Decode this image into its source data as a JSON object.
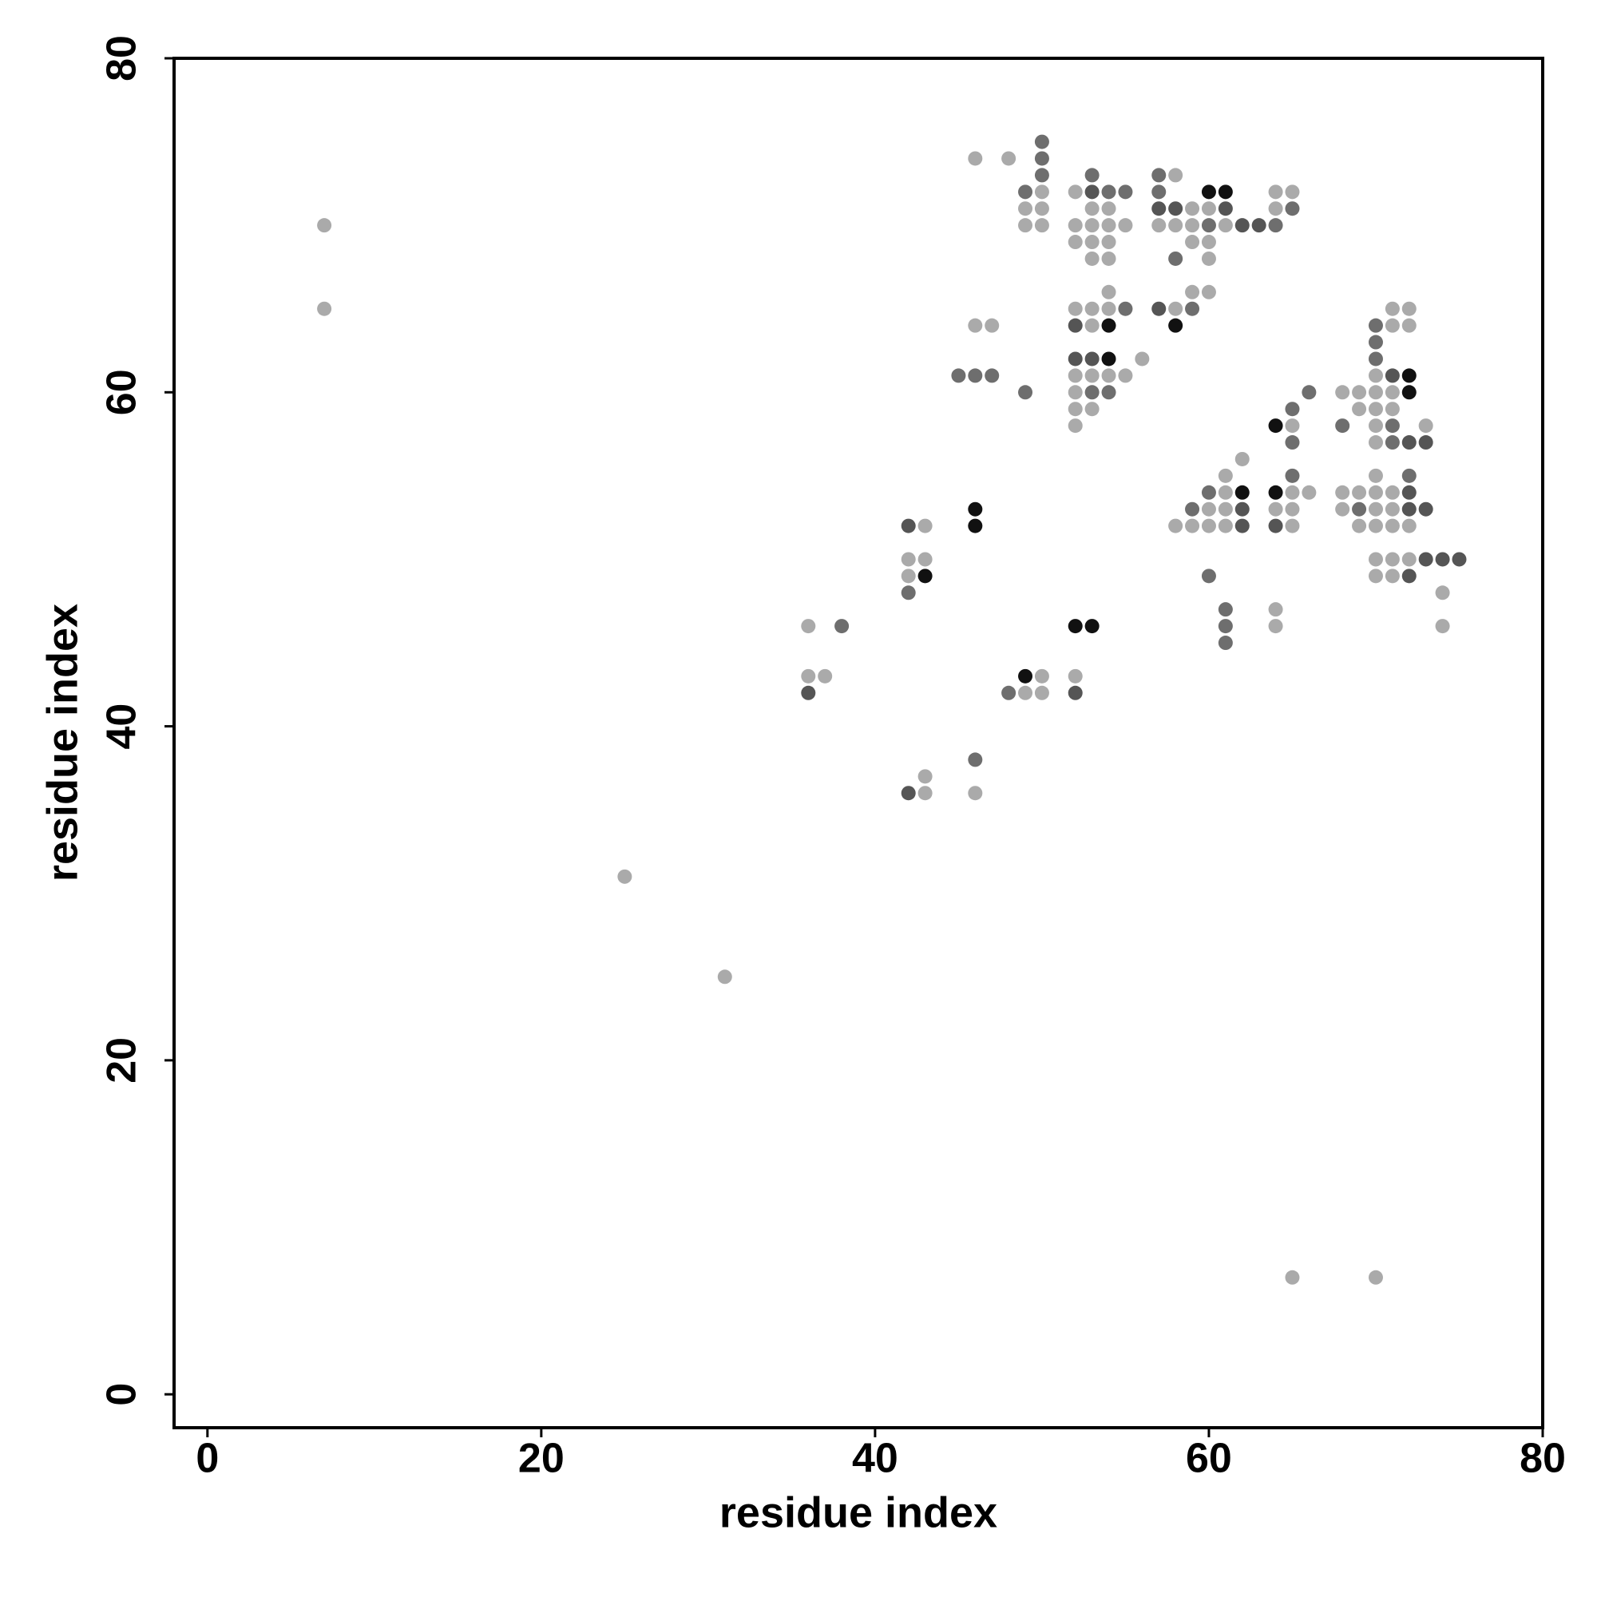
{
  "chart_data": {
    "type": "scatter",
    "x_label": "residue index",
    "y_label": "residue index",
    "xlim": [
      -2,
      80
    ],
    "ylim": [
      -2,
      80
    ],
    "xticks": [
      0,
      20,
      40,
      60,
      80
    ],
    "yticks": [
      0,
      20,
      40,
      60,
      80
    ],
    "series": [
      {
        "color": "#aaaaaa",
        "x": [
          7,
          7,
          25,
          31,
          65,
          70,
          46,
          48,
          50,
          49,
          50,
          49,
          50,
          52,
          53,
          54,
          52,
          53,
          54,
          55,
          52,
          53,
          54,
          53,
          54,
          58,
          59,
          60,
          57,
          58,
          59,
          61,
          59,
          60,
          60,
          64,
          65,
          64,
          54,
          59,
          60,
          52,
          53,
          54,
          58,
          53,
          46,
          47,
          56,
          52,
          53,
          54,
          55,
          52,
          52,
          53,
          52,
          71,
          72,
          71,
          72,
          70,
          68,
          69,
          70,
          71,
          69,
          70,
          71,
          65,
          70,
          73,
          70,
          62,
          61,
          70,
          61,
          65,
          66,
          68,
          69,
          70,
          71,
          60,
          61,
          64,
          65,
          68,
          70,
          71,
          58,
          59,
          60,
          61,
          65,
          69,
          70,
          71,
          72,
          70,
          71,
          72,
          70,
          71,
          74,
          74,
          64,
          64,
          43,
          42,
          43,
          42,
          36,
          36,
          37,
          50,
          52,
          49,
          50,
          43,
          43,
          46
        ],
        "values": [
          70,
          65,
          31,
          25,
          7,
          7,
          74,
          74,
          72,
          71,
          71,
          70,
          70,
          72,
          71,
          71,
          70,
          70,
          70,
          70,
          69,
          69,
          69,
          68,
          68,
          73,
          71,
          71,
          70,
          70,
          70,
          70,
          69,
          69,
          68,
          72,
          72,
          71,
          66,
          66,
          66,
          65,
          65,
          65,
          65,
          64,
          64,
          64,
          62,
          61,
          61,
          61,
          61,
          60,
          59,
          59,
          58,
          65,
          65,
          64,
          64,
          61,
          60,
          60,
          60,
          60,
          59,
          59,
          59,
          58,
          58,
          58,
          57,
          56,
          55,
          55,
          54,
          54,
          54,
          54,
          54,
          54,
          54,
          53,
          53,
          53,
          53,
          53,
          53,
          53,
          52,
          52,
          52,
          52,
          52,
          52,
          52,
          52,
          52,
          50,
          50,
          50,
          49,
          49,
          48,
          46,
          47,
          46,
          52,
          50,
          50,
          49,
          46,
          43,
          43,
          43,
          43,
          42,
          42,
          37,
          36,
          36
        ]
      },
      {
        "color": "#6e6e6e",
        "x": [
          50,
          50,
          50,
          49,
          53,
          54,
          55,
          57,
          58,
          57,
          60,
          64,
          65,
          55,
          59,
          45,
          46,
          47,
          49,
          53,
          54,
          70,
          70,
          70,
          66,
          65,
          68,
          71,
          65,
          71,
          65,
          72,
          60,
          59,
          69,
          60,
          61,
          61,
          61,
          42,
          38,
          48,
          46
        ],
        "values": [
          75,
          74,
          73,
          72,
          73,
          72,
          72,
          73,
          68,
          72,
          70,
          70,
          71,
          65,
          65,
          61,
          61,
          61,
          60,
          60,
          60,
          64,
          63,
          62,
          60,
          59,
          58,
          58,
          57,
          57,
          55,
          55,
          54,
          53,
          53,
          49,
          47,
          46,
          45,
          48,
          46,
          42,
          38
        ]
      },
      {
        "color": "#555555",
        "x": [
          53,
          57,
          58,
          61,
          62,
          63,
          57,
          52,
          52,
          53,
          71,
          72,
          73,
          72,
          62,
          72,
          73,
          62,
          64,
          73,
          74,
          75,
          72,
          42,
          36,
          52,
          42
        ],
        "values": [
          72,
          71,
          71,
          71,
          70,
          70,
          65,
          64,
          62,
          62,
          61,
          57,
          57,
          54,
          53,
          53,
          53,
          52,
          52,
          50,
          50,
          50,
          49,
          52,
          42,
          42,
          36
        ]
      },
      {
        "color": "#111111",
        "x": [
          60,
          61,
          54,
          58,
          54,
          72,
          72,
          64,
          62,
          64,
          43,
          46,
          46,
          52,
          53,
          49
        ],
        "values": [
          72,
          72,
          64,
          64,
          62,
          61,
          60,
          58,
          54,
          54,
          49,
          53,
          52,
          46,
          46,
          43
        ]
      }
    ]
  }
}
